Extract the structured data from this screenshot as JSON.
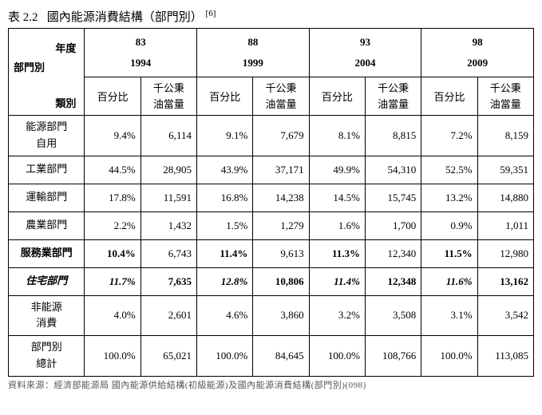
{
  "title": {
    "prefix": "表 2.2",
    "main": "國內能源消費結構（部門別）",
    "ref": "[6]"
  },
  "headerCell": {
    "year": "年度",
    "dept": "部門別",
    "cat": "類別"
  },
  "years": [
    {
      "roc": "83",
      "ad": "1994"
    },
    {
      "roc": "88",
      "ad": "1999"
    },
    {
      "roc": "93",
      "ad": "2004"
    },
    {
      "roc": "98",
      "ad": "2009"
    }
  ],
  "subcols": {
    "pct": "百分比",
    "val_l1": "千公秉",
    "val_l2": "油當量"
  },
  "rows": [
    {
      "label_l1": "能源部門",
      "label_l2": "自用",
      "cells": [
        {
          "pct": "9.4%",
          "val": "6,114"
        },
        {
          "pct": "9.1%",
          "val": "7,679"
        },
        {
          "pct": "8.1%",
          "val": "8,815"
        },
        {
          "pct": "7.2%",
          "val": "8,159"
        }
      ]
    },
    {
      "label": "工業部門",
      "cells": [
        {
          "pct": "44.5%",
          "val": "28,905"
        },
        {
          "pct": "43.9%",
          "val": "37,171"
        },
        {
          "pct": "49.9%",
          "val": "54,310"
        },
        {
          "pct": "52.5%",
          "val": "59,351"
        }
      ]
    },
    {
      "label": "運輸部門",
      "cells": [
        {
          "pct": "17.8%",
          "val": "11,591"
        },
        {
          "pct": "16.8%",
          "val": "14,238"
        },
        {
          "pct": "14.5%",
          "val": "15,745"
        },
        {
          "pct": "13.2%",
          "val": "14,880"
        }
      ]
    },
    {
      "label": "農業部門",
      "cells": [
        {
          "pct": "2.2%",
          "val": "1,432"
        },
        {
          "pct": "1.5%",
          "val": "1,279"
        },
        {
          "pct": "1.6%",
          "val": "1,700"
        },
        {
          "pct": "0.9%",
          "val": "1,011"
        }
      ]
    },
    {
      "label": "服務業部門",
      "labelBold": true,
      "cells": [
        {
          "pct": "10.4%",
          "pctBold": true,
          "val": "6,743"
        },
        {
          "pct": "11.4%",
          "pctBold": true,
          "val": "9,613"
        },
        {
          "pct": "11.3%",
          "pctBold": true,
          "val": "12,340"
        },
        {
          "pct": "11.5%",
          "pctBold": true,
          "val": "12,980"
        }
      ]
    },
    {
      "label": "住宅部門",
      "labelBold": true,
      "labelItalic": true,
      "cells": [
        {
          "pct": "11.7%",
          "pctBold": true,
          "pctItalic": true,
          "val": "7,635",
          "valBold": true
        },
        {
          "pct": "12.8%",
          "pctBold": true,
          "pctItalic": true,
          "val": "10,806",
          "valBold": true
        },
        {
          "pct": "11.4%",
          "pctBold": true,
          "pctItalic": true,
          "val": "12,348",
          "valBold": true
        },
        {
          "pct": "11.6%",
          "pctBold": true,
          "pctItalic": true,
          "val": "13,162",
          "valBold": true
        }
      ]
    },
    {
      "label_l1": "非能源",
      "label_l2": "消費",
      "cells": [
        {
          "pct": "4.0%",
          "val": "2,601"
        },
        {
          "pct": "4.6%",
          "val": "3,860"
        },
        {
          "pct": "3.2%",
          "val": "3,508"
        },
        {
          "pct": "3.1%",
          "val": "3,542"
        }
      ]
    },
    {
      "label_l1": "部門別",
      "label_l2": "總計",
      "cells": [
        {
          "pct": "100.0%",
          "val": "65,021"
        },
        {
          "pct": "100.0%",
          "val": "84,645"
        },
        {
          "pct": "100.0%",
          "val": "108,766"
        },
        {
          "pct": "100.0%",
          "val": "113,085"
        }
      ]
    }
  ],
  "footnote": "資料來源：經濟部能源局 國內能源供給結構(初級能源)及國內能源消費結構(部門別)(098)"
}
